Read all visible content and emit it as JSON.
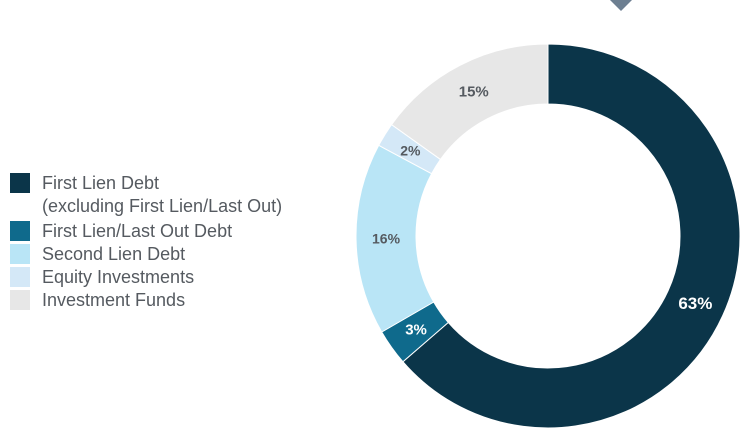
{
  "chart_data": {
    "type": "pie",
    "donut": true,
    "title": "",
    "slices": [
      {
        "label": "First Lien Debt (excluding First Lien/Last Out)",
        "value": 63,
        "display": "63%",
        "color": "#0b3549",
        "label_color": "#ffffff"
      },
      {
        "label": "First Lien/Last Out Debt",
        "value": 3,
        "display": "3%",
        "color": "#0f6a8c",
        "label_color": "#ffffff"
      },
      {
        "label": "Second Lien Debt",
        "value": 16,
        "display": "16%",
        "color": "#b9e5f6",
        "label_color": "#555a60"
      },
      {
        "label": "Equity Investments",
        "value": 2,
        "display": "2%",
        "color": "#d4e8f7",
        "label_color": "#555a60"
      },
      {
        "label": "Investment Funds",
        "value": 15,
        "display": "15%",
        "color": "#e7e7e7",
        "label_color": "#555a60"
      }
    ],
    "legend_position": "left"
  },
  "legend": {
    "items": [
      {
        "line1": "First Lien Debt",
        "line2": "(excluding First Lien/Last Out)",
        "color": "#0b3549"
      },
      {
        "line1": "First Lien/Last Out Debt",
        "color": "#0f6a8c"
      },
      {
        "line1": "Second Lien Debt",
        "color": "#b9e5f6"
      },
      {
        "line1": "Equity Investments",
        "color": "#d4e8f7"
      },
      {
        "line1": "Investment Funds",
        "color": "#e7e7e7"
      }
    ]
  },
  "decor": {
    "marker_color": "#6d7f91"
  }
}
